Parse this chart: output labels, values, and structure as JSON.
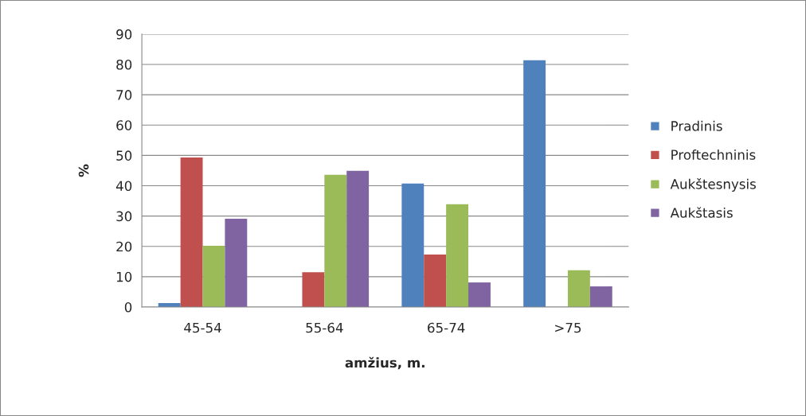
{
  "chart_data": {
    "type": "bar",
    "xlabel": "amžius, m.",
    "ylabel": "%",
    "categories": [
      "45-54",
      "55-64",
      "65-74",
      ">75"
    ],
    "series": [
      {
        "name": "Pradinis",
        "color": "#4f81bd",
        "values": [
          1.3,
          null,
          40.7,
          81.4
        ]
      },
      {
        "name": "Proftechninis",
        "color": "#c0504d",
        "values": [
          49.3,
          11.5,
          17.3,
          null
        ]
      },
      {
        "name": "Aukštesnysis",
        "color": "#9bbb59",
        "values": [
          20.2,
          43.6,
          33.9,
          12.1
        ]
      },
      {
        "name": "Aukštasis",
        "color": "#8064a2",
        "values": [
          29.1,
          44.9,
          8.1,
          6.8
        ]
      }
    ],
    "ylim": [
      0,
      90
    ],
    "yticks": [
      0,
      10,
      20,
      30,
      40,
      50,
      60,
      70,
      80,
      90
    ],
    "grid": "y",
    "legend": "right"
  }
}
